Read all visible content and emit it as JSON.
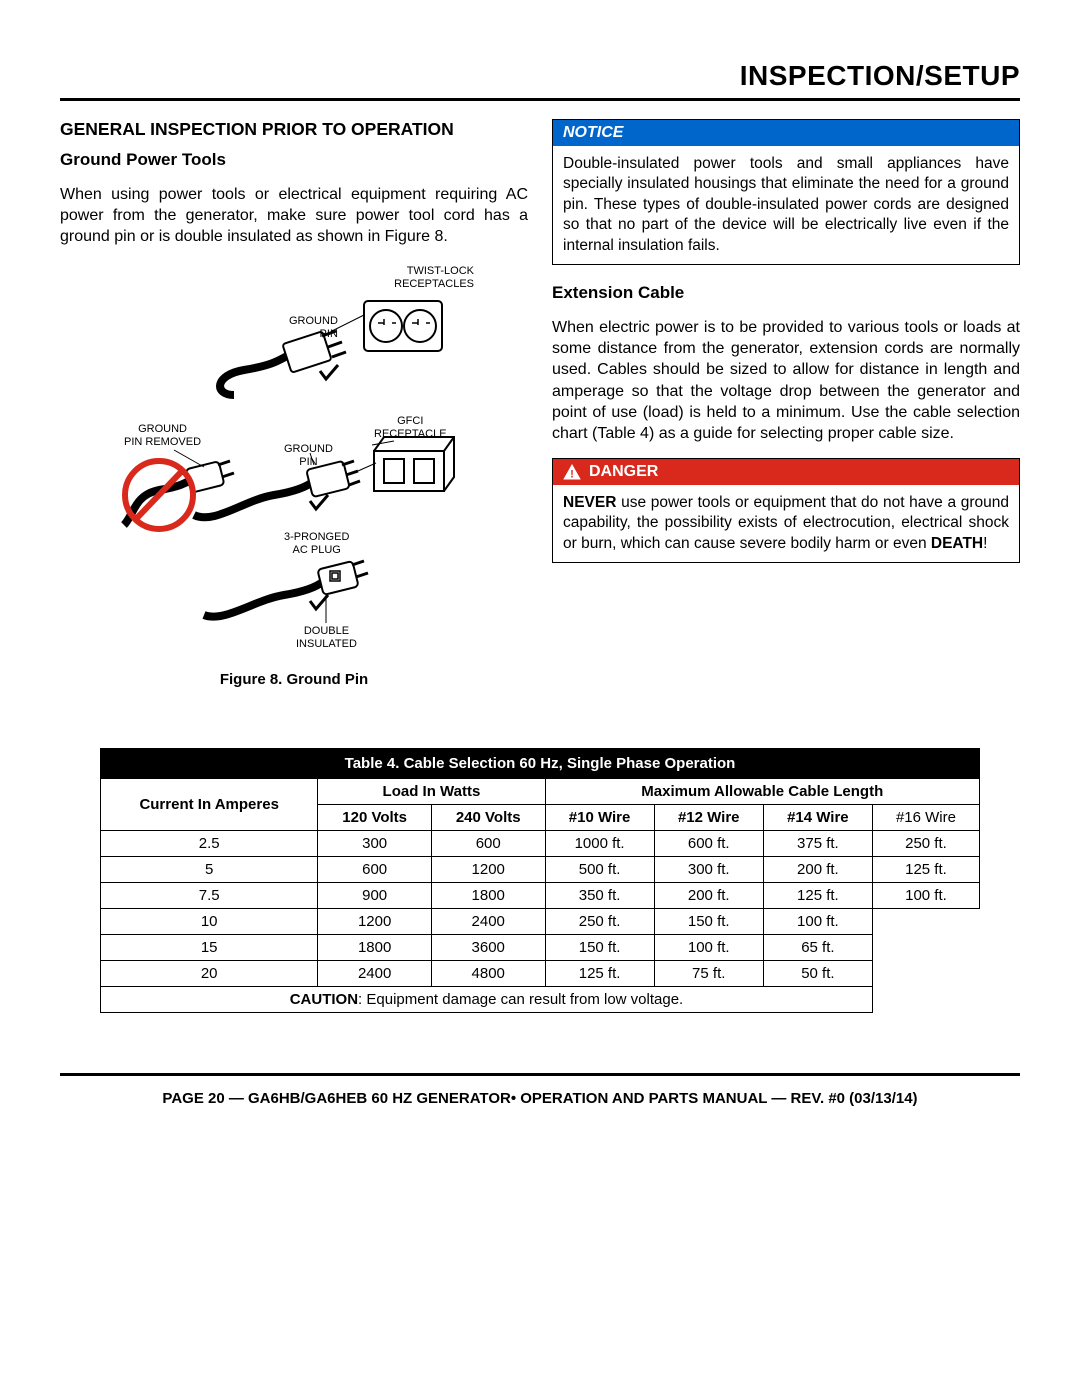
{
  "page_title": "INSPECTION/SETUP",
  "left": {
    "heading": "GENERAL INSPECTION PRIOR TO OPERATION",
    "sub": "Ground Power Tools",
    "para": "When using power tools or electrical equipment requiring AC power from the generator, make sure power tool cord has a ground pin or is double insulated as shown in Figure 8.",
    "figure_caption": "Figure 8. Ground Pin",
    "labels": {
      "twist_lock": "TWIST-LOCK\nRECEPTACLES",
      "ground_pin_top": "GROUND\nPIN",
      "gfci": "GFCI\nRECEPTACLE",
      "ground_removed": "GROUND\nPIN REMOVED",
      "ground_pin_mid": "GROUND\nPIN",
      "three_prong": "3-PRONGED\nAC PLUG",
      "double_ins": "DOUBLE\nINSULATED"
    }
  },
  "right": {
    "notice_label": "NOTICE",
    "notice_body": "Double-insulated power tools and small appliances have specially insulated housings that eliminate the need for a ground pin. These types of double-insulated power cords are designed so that no part of the device will be electrically live even if the internal insulation fails.",
    "ext_heading": "Extension Cable",
    "ext_para": "When electric power is to be provided to various tools or loads at some distance from the generator, extension cords are normally used. Cables should be sized to allow for distance in length and amperage so that the voltage drop between the generator and point of use (load) is held to a minimum. Use the cable selection chart (Table 4) as a guide for selecting proper cable size.",
    "danger_label": "DANGER",
    "danger_body_pre": "NEVER",
    "danger_body_mid": " use power tools or equipment that do not have a ground capability, the possibility exists of electrocution, electrical shock or burn, which can cause severe bodily harm or even ",
    "danger_body_post": "DEATH",
    "danger_excl": "!"
  },
  "table": {
    "title": "Table 4. Cable Selection 60 Hz, Single Phase Operation",
    "h_current": "Current In Amperes",
    "h_load": "Load In Watts",
    "h_max": "Maximum Allowable Cable Length",
    "h_120": "120 Volts",
    "h_240": "240 Volts",
    "h_w10": "#10 Wire",
    "h_w12": "#12 Wire",
    "h_w14": "#14 Wire",
    "h_w16": "#16 Wire",
    "rows": [
      {
        "a": "2.5",
        "v120": "300",
        "v240": "600",
        "w10": "1000 ft.",
        "w12": "600 ft.",
        "w14": "375 ft.",
        "w16": "250 ft."
      },
      {
        "a": "5",
        "v120": "600",
        "v240": "1200",
        "w10": "500 ft.",
        "w12": "300 ft.",
        "w14": "200 ft.",
        "w16": "125 ft."
      },
      {
        "a": "7.5",
        "v120": "900",
        "v240": "1800",
        "w10": "350 ft.",
        "w12": "200 ft.",
        "w14": "125 ft.",
        "w16": "100 ft."
      },
      {
        "a": "10",
        "v120": "1200",
        "v240": "2400",
        "w10": "250 ft.",
        "w12": "150 ft.",
        "w14": "100 ft.",
        "w16": ""
      },
      {
        "a": "15",
        "v120": "1800",
        "v240": "3600",
        "w10": "150 ft.",
        "w12": "100 ft.",
        "w14": "65 ft.",
        "w16": ""
      },
      {
        "a": "20",
        "v120": "2400",
        "v240": "4800",
        "w10": "125 ft.",
        "w12": "75 ft.",
        "w14": "50 ft.",
        "w16": ""
      }
    ],
    "caution_pre": "CAUTION",
    "caution_post": ": Equipment damage can result from low voltage."
  },
  "footer": "PAGE 20 — GA6HB/GA6HEB 60 HZ GENERATOR• OPERATION AND PARTS MANUAL — REV. #0 (03/13/14)",
  "colors": {
    "notice_bg": "#0066cc",
    "danger_bg": "#d9291c",
    "black": "#000000",
    "white": "#ffffff"
  }
}
